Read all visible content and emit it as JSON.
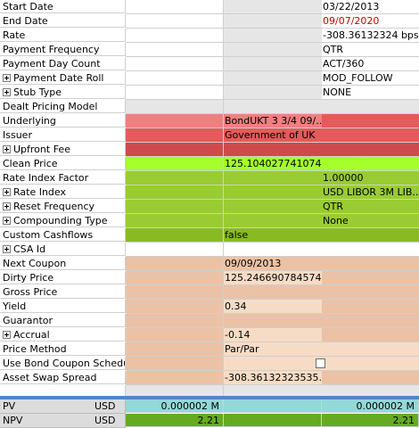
{
  "rows": [
    {
      "label": "Start Date",
      "c3": "03/22/2013"
    },
    {
      "label": "End Date",
      "c3": "09/07/2020"
    },
    {
      "label": "Rate",
      "c3": "-308.36132324 bps"
    },
    {
      "label": "Payment Frequency",
      "c3": "QTR"
    },
    {
      "label": "Payment Day Count",
      "c3": "ACT/360"
    },
    {
      "label": "Payment Date Roll",
      "c3": "MOD_FOLLOW"
    },
    {
      "label": "Stub Type",
      "c3": "NONE"
    },
    {
      "label": "Dealt Pricing Model"
    },
    {
      "label": "Underlying",
      "c2": "BondUKT 3 3/4 09/..."
    },
    {
      "label": "Issuer",
      "c2": "Government of UK"
    },
    {
      "label": "Upfront Fee"
    },
    {
      "label": "Clean Price",
      "c2": "125.10402774107405"
    },
    {
      "label": "Rate Index Factor",
      "c3": "1.00000"
    },
    {
      "label": "Rate Index",
      "c3": "USD LIBOR 3M LIB..."
    },
    {
      "label": "Reset Frequency",
      "c3": "QTR"
    },
    {
      "label": "Compounding Type",
      "c3": "None"
    },
    {
      "label": "Custom Cashflows",
      "c2": "false"
    },
    {
      "label": "CSA Id"
    },
    {
      "label": "Next Coupon",
      "c2": "09/09/2013"
    },
    {
      "label": "Dirty Price",
      "c2": "125.24669078457404"
    },
    {
      "label": "Gross Price"
    },
    {
      "label": "Yield",
      "c2": "0.34"
    },
    {
      "label": "Guarantor"
    },
    {
      "label": "Accrual",
      "c2": "-0.14"
    },
    {
      "label": "Price Method",
      "c2": "Par/Par"
    },
    {
      "label": "Use Bond Coupon Schedule"
    },
    {
      "label": "Asset Swap Spread",
      "c2": "-308.36132323535..."
    },
    {
      "label": ""
    }
  ],
  "footer": [
    {
      "label": "PV",
      "currency": "USD",
      "value1": "0.000002 M",
      "value2": "0.000002 M"
    },
    {
      "label": "NPV",
      "currency": "USD",
      "value1": "2.21",
      "value2": "2.21"
    }
  ],
  "colors": {
    "grey": "#e6e6e6",
    "red_light": "#f08080",
    "red_mid": "#e35b5b",
    "red_dark": "#cf4a4a",
    "lime_bright": "#a6ff2a",
    "green": "#99cc33",
    "green_dark": "#88bb22",
    "peach": "#ebc2a6",
    "peach_light": "#f7dcc5",
    "pv_teal": "#95d8d8",
    "npv_green": "#66aa22",
    "end_date_red": "#cc0000"
  },
  "icons": {
    "expand": "plus-box-icon",
    "checkbox": "checkbox-icon"
  }
}
